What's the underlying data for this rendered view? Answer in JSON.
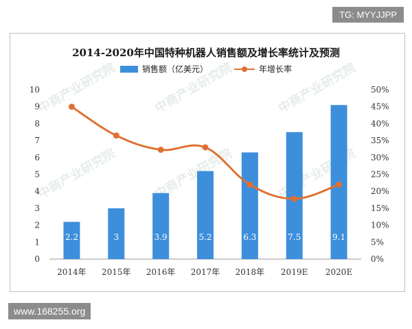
{
  "badge": "TG: MYYJJPP",
  "footer": "www.168255.org",
  "watermark": "中商产业研究院",
  "chart_data": {
    "type": "bar",
    "title": "2014-2020年中国特种机器人销售额及增长率统计及预测",
    "categories": [
      "2014年",
      "2015年",
      "2016年",
      "2017年",
      "2018年",
      "2019E",
      "2020E"
    ],
    "series": [
      {
        "name": "销售额（亿美元）",
        "type": "bar",
        "axis": "left",
        "values": [
          2.2,
          3,
          3.9,
          5.2,
          6.3,
          7.5,
          9.1
        ],
        "labels": [
          "2.2",
          "3",
          "3.9",
          "5.2",
          "6.3",
          "7.5",
          "9.1"
        ]
      },
      {
        "name": "年增长率",
        "type": "line",
        "axis": "right",
        "values": [
          45,
          36.5,
          32.3,
          33,
          22,
          17.8,
          22
        ]
      }
    ],
    "ylim": [
      0,
      10
    ],
    "y_ticks": [
      "0",
      "1",
      "2",
      "3",
      "4",
      "5",
      "6",
      "7",
      "8",
      "9",
      "10"
    ],
    "y2lim": [
      0,
      50
    ],
    "y2_ticks": [
      "0%",
      "5%",
      "10%",
      "15%",
      "20%",
      "25%",
      "30%",
      "35%",
      "40%",
      "45%",
      "50%"
    ],
    "legend_position": "top-center",
    "grid": false,
    "colors": {
      "bar": "#3d8fdc",
      "line": "#e07032"
    }
  }
}
